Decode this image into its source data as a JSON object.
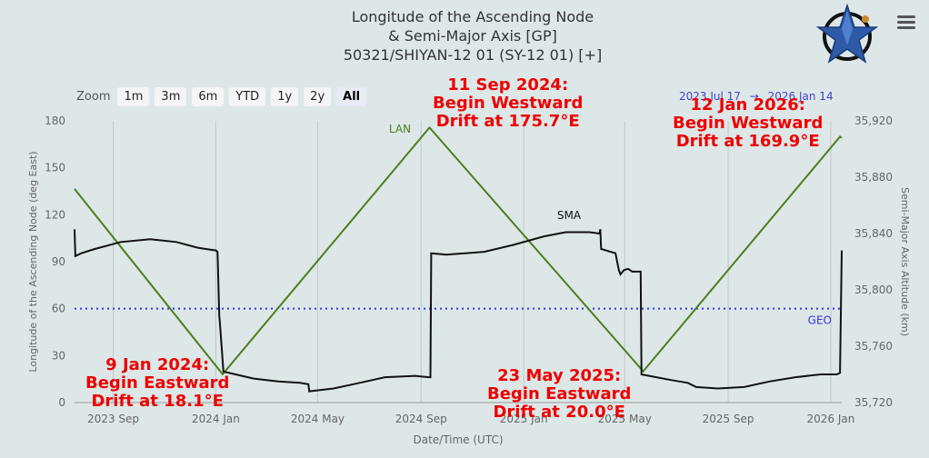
{
  "title": {
    "line1": "Longitude of the Ascending Node",
    "line2": "& Semi-Major Axis [GP]",
    "line3": "50321/SHIYAN-12 01 (SY-12 01) [+]"
  },
  "zoom": {
    "label": "Zoom",
    "buttons": [
      "1m",
      "3m",
      "6m",
      "YTD",
      "1y",
      "2y",
      "All"
    ],
    "active": "All"
  },
  "range": {
    "from": "2023 Jul 17",
    "sep": "→",
    "to": "2026 Jan 14"
  },
  "colors": {
    "lan": "#4a7f1a",
    "sma": "#111111",
    "geo": "#3333ee",
    "annotation": "#ee0000",
    "background": "#dde7e7"
  },
  "icons": [
    "star-logo-icon",
    "hamburger-menu-icon"
  ],
  "annotations": [
    {
      "lines": [
        "11 Sep 2024:",
        "Begin Westward",
        "Drift at 175.7°E"
      ]
    },
    {
      "lines": [
        "12 Jan 2026:",
        "Begin Westward",
        "Drift at 169.9°E"
      ]
    },
    {
      "lines": [
        "9 Jan 2024:",
        "Begin Eastward",
        "Drift at 18.1°E"
      ]
    },
    {
      "lines": [
        "23 May 2025:",
        "Begin Eastward",
        "Drift at 20.0°E"
      ]
    }
  ],
  "chart_data": {
    "type": "line",
    "xlabel": "Date/Time (UTC)",
    "ylabel_left": "Longitude of the Ascending Node (deg East)",
    "ylabel_right": "Semi-Major Axis Altitude (km)",
    "x_range": [
      "2023-07-17",
      "2026-01-14"
    ],
    "x_ticks": [
      {
        "date": "2023-09-01",
        "label": "2023 Sep"
      },
      {
        "date": "2024-01-01",
        "label": "2024 Jan"
      },
      {
        "date": "2024-05-01",
        "label": "2024 May"
      },
      {
        "date": "2024-09-01",
        "label": "2024 Sep"
      },
      {
        "date": "2025-01-01",
        "label": "2025 Jan"
      },
      {
        "date": "2025-05-01",
        "label": "2025 May"
      },
      {
        "date": "2025-09-01",
        "label": "2025 Sep"
      },
      {
        "date": "2026-01-01",
        "label": "2026 Jan"
      }
    ],
    "y_left": {
      "range": [
        0,
        180
      ],
      "ticks": [
        0,
        30,
        60,
        90,
        120,
        150,
        180
      ]
    },
    "y_right": {
      "range": [
        35720,
        35920
      ],
      "ticks": [
        "35,720",
        "35,760",
        "35,800",
        "35,840",
        "35,880",
        "35,920"
      ]
    },
    "series": [
      {
        "name": "LAN",
        "axis": "left",
        "points": [
          [
            "2023-07-17",
            136.5
          ],
          [
            "2024-01-09",
            18.1
          ],
          [
            "2024-09-11",
            175.7
          ],
          [
            "2025-05-23",
            20.0
          ],
          [
            "2026-01-12",
            169.9
          ],
          [
            "2026-01-14",
            169.0
          ]
        ]
      },
      {
        "name": "SMA",
        "axis": "right",
        "points": [
          [
            "2023-07-17",
            35843
          ],
          [
            "2023-07-18",
            35824
          ],
          [
            "2023-07-25",
            35826
          ],
          [
            "2023-08-10",
            35829
          ],
          [
            "2023-09-10",
            35834
          ],
          [
            "2023-10-15",
            35836
          ],
          [
            "2023-11-15",
            35834
          ],
          [
            "2023-12-10",
            35830
          ],
          [
            "2023-12-20",
            35829
          ],
          [
            "2024-01-01",
            35828
          ],
          [
            "2024-01-03",
            35827
          ],
          [
            "2024-01-05",
            35782
          ],
          [
            "2024-01-06",
            35775
          ],
          [
            "2024-01-10",
            35742
          ],
          [
            "2024-02-15",
            35737
          ],
          [
            "2024-03-15",
            35735
          ],
          [
            "2024-04-10",
            35734
          ],
          [
            "2024-04-20",
            35733
          ],
          [
            "2024-04-21",
            35728
          ],
          [
            "2024-05-20",
            35730
          ],
          [
            "2024-06-20",
            35734
          ],
          [
            "2024-07-20",
            35738
          ],
          [
            "2024-08-25",
            35739
          ],
          [
            "2024-09-10",
            35738
          ],
          [
            "2024-09-12",
            35738
          ],
          [
            "2024-09-13",
            35826
          ],
          [
            "2024-10-01",
            35825
          ],
          [
            "2024-11-15",
            35827
          ],
          [
            "2024-12-20",
            35832
          ],
          [
            "2025-01-25",
            35838
          ],
          [
            "2025-02-20",
            35841
          ],
          [
            "2025-03-20",
            35841
          ],
          [
            "2025-04-01",
            35840
          ],
          [
            "2025-04-02",
            35843
          ],
          [
            "2025-04-03",
            35829
          ],
          [
            "2025-04-20",
            35826
          ],
          [
            "2025-04-24",
            35814
          ],
          [
            "2025-04-26",
            35811
          ],
          [
            "2025-04-30",
            35814
          ],
          [
            "2025-05-05",
            35815
          ],
          [
            "2025-05-10",
            35813
          ],
          [
            "2025-05-20",
            35813
          ],
          [
            "2025-05-21",
            35740
          ],
          [
            "2025-06-25",
            35736
          ],
          [
            "2025-07-15",
            35734
          ],
          [
            "2025-07-25",
            35731
          ],
          [
            "2025-08-20",
            35730
          ],
          [
            "2025-09-20",
            35731
          ],
          [
            "2025-10-20",
            35735
          ],
          [
            "2025-11-20",
            35738
          ],
          [
            "2025-12-20",
            35740
          ],
          [
            "2026-01-08",
            35740
          ],
          [
            "2026-01-12",
            35741
          ],
          [
            "2026-01-14",
            35828
          ]
        ]
      }
    ],
    "reference_lines": [
      {
        "name": "GEO",
        "axis": "left",
        "value": 60
      }
    ]
  }
}
